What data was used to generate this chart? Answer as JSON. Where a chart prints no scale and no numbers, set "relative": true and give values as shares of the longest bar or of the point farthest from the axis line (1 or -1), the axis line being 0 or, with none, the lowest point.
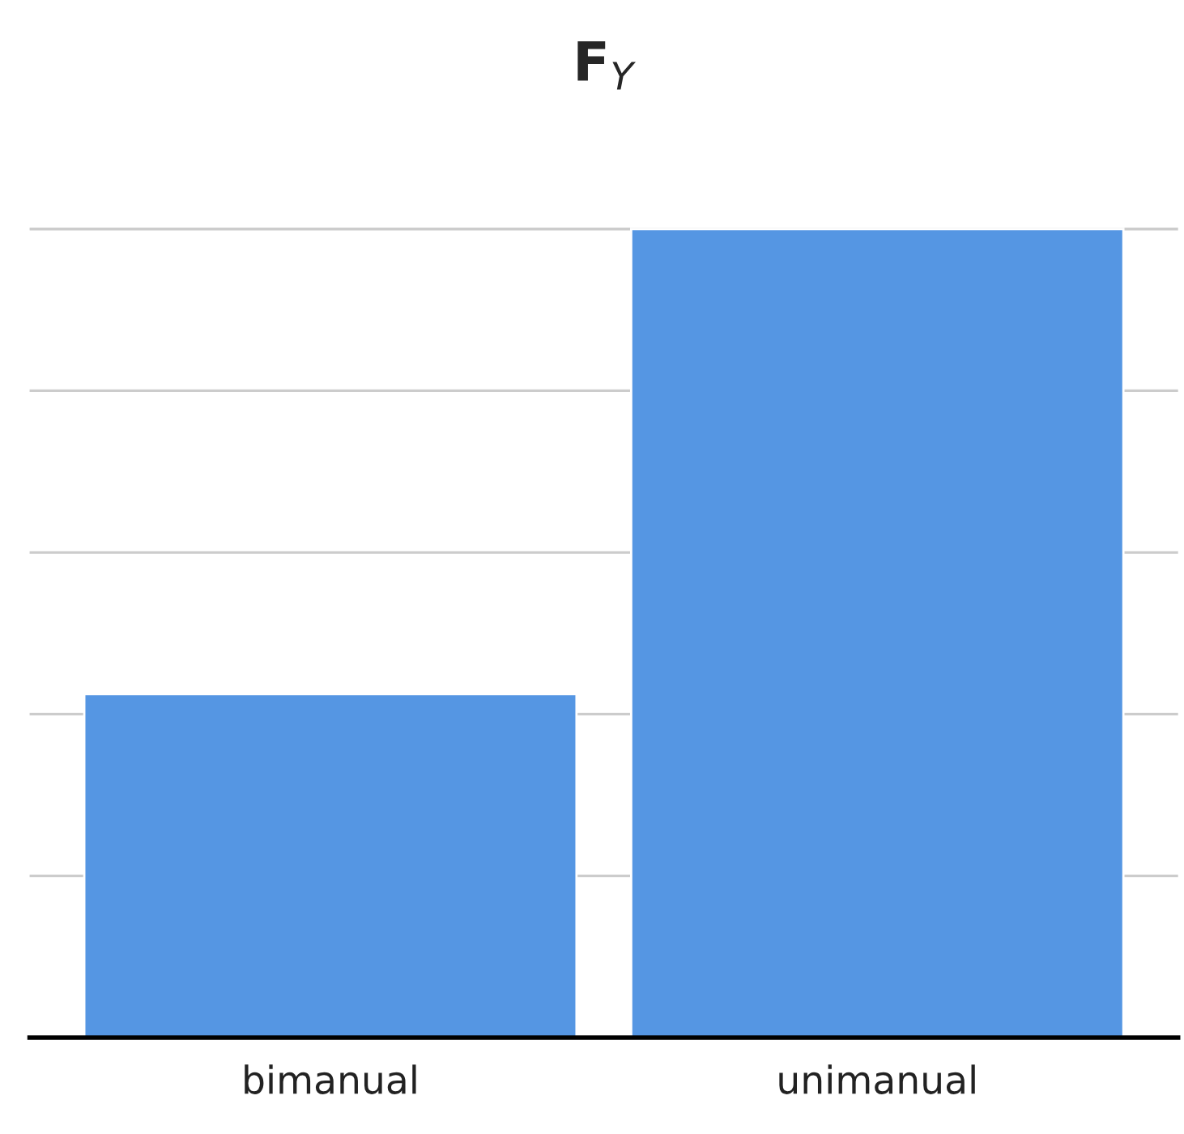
{
  "chart_data": {
    "type": "bar",
    "title": "F$_{Y}$",
    "categories": [
      "bimanual",
      "unimanual"
    ],
    "values": [
      0.425,
      1
    ],
    "color": "#5596e3",
    "relative": true,
    "grid": "y",
    "legend": false
  }
}
